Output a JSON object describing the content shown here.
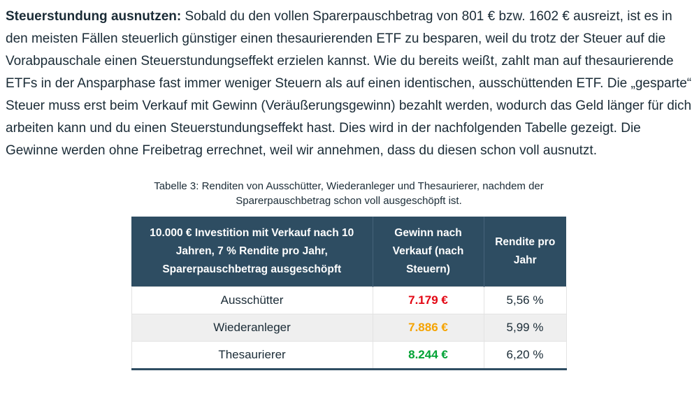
{
  "paragraph": {
    "lead": "Steuerstundung ausnutzen:",
    "body": " Sobald du den vollen Sparerpauschbetrag von 801 € bzw. 1602 € ausreizt, ist es in den meisten Fällen steuerlich günstiger einen thesaurierenden ETF zu besparen, weil du trotz der Steuer auf die Vorabpauschale einen Steuerstundungseffekt erzielen kannst. Wie du bereits weißt, zahlt man auf thesaurierende ETFs in der Ansparphase fast immer weniger Steuern als auf einen identischen, ausschüttenden ETF. Die „gesparte“ Steuer muss erst beim Verkauf mit Gewinn (Veräußerungsgewinn) bezahlt werden, wodurch das Geld länger für dich arbeiten kann und du einen Steuerstundungseffekt hast. Dies wird in der nachfolgenden Tabelle gezeigt. Die Gewinne werden ohne Freibetrag errechnet, weil wir annehmen, dass du diesen schon voll ausnutzt."
  },
  "table": {
    "caption": "Tabelle 3: Renditen von Ausschütter, Wiederanleger und Thesaurierer, nachdem der Sparerpauschbetrag schon voll ausgeschöpft ist.",
    "headers": [
      "10.000 € Investition mit Verkauf nach 10 Jahren, 7 % Rendite pro Jahr, Sparerpauschbetrag ausgeschöpft",
      "Gewinn nach Verkauf (nach Steuern)",
      "Rendite pro Jahr"
    ],
    "rows": [
      {
        "label": "Ausschütter",
        "gewinn": "7.179 €",
        "gewinn_color": "#e30613",
        "rendite": "5,56 %"
      },
      {
        "label": "Wiederanleger",
        "gewinn": "7.886 €",
        "gewinn_color": "#f5a300",
        "rendite": "5,99 %"
      },
      {
        "label": "Thesaurierer",
        "gewinn": "8.244 €",
        "gewinn_color": "#00a335",
        "rendite": "6,20 %"
      }
    ],
    "colors": {
      "header_bg": "#2e4d62",
      "row_alt_bg": "#efefef",
      "text": "#1a2b36"
    }
  }
}
